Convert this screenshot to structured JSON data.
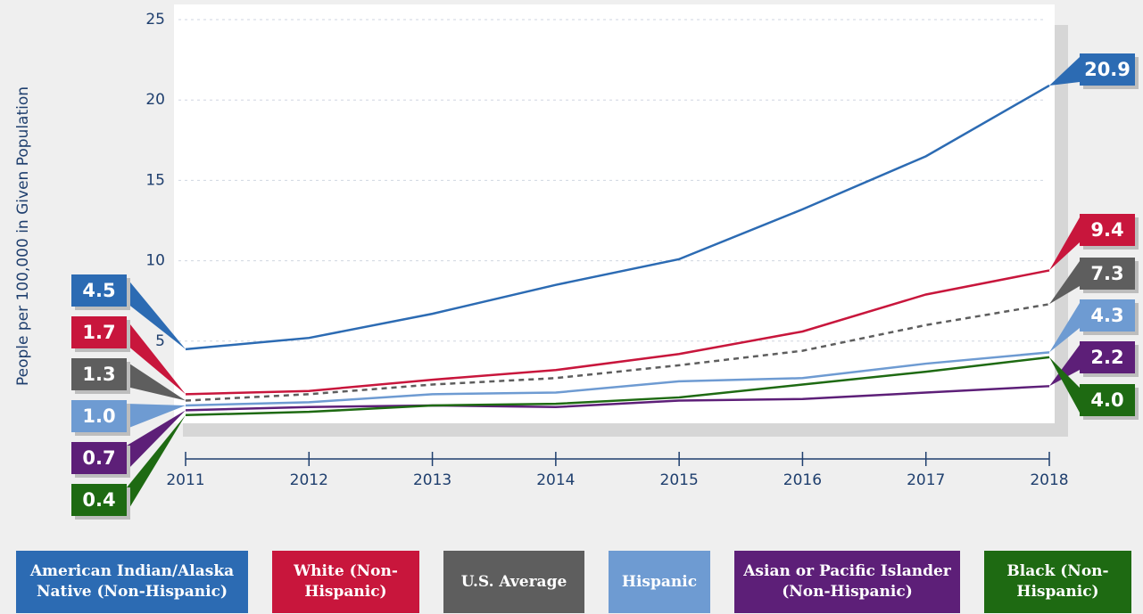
{
  "chart_data": {
    "type": "line",
    "y_label": "People per 100,000 in Given Population",
    "x": [
      2011,
      2012,
      2013,
      2014,
      2015,
      2016,
      2017,
      2018
    ],
    "xlim": [
      2011,
      2018
    ],
    "xticks": [
      2011,
      2012,
      2013,
      2014,
      2015,
      2016,
      2017,
      2018
    ],
    "ylim": [
      0,
      25
    ],
    "yticks": [
      5,
      10,
      15,
      20,
      25
    ],
    "grid": true,
    "legend": "bottom",
    "series": [
      {
        "name": "American Indian/Alaska Native (Non-Hispanic)",
        "color": "#2c6bb3",
        "dashed": false,
        "values": [
          4.5,
          5.2,
          6.7,
          8.5,
          10.1,
          13.2,
          16.5,
          20.9
        ],
        "value_labels": [
          "4.5",
          null,
          null,
          null,
          null,
          null,
          null,
          "20.9"
        ]
      },
      {
        "name": "White (Non-Hispanic)",
        "color": "#c8163c",
        "dashed": false,
        "values": [
          1.7,
          1.9,
          2.6,
          3.2,
          4.2,
          5.6,
          7.9,
          9.4
        ],
        "value_labels": [
          "1.7",
          null,
          null,
          null,
          null,
          null,
          null,
          "9.4"
        ]
      },
      {
        "name": "U.S. Average",
        "color": "#5e5e5e",
        "dashed": true,
        "values": [
          1.3,
          1.7,
          2.3,
          2.7,
          3.5,
          4.4,
          6.0,
          7.3
        ],
        "value_labels": [
          "1.3",
          null,
          null,
          null,
          null,
          null,
          null,
          "7.3"
        ]
      },
      {
        "name": "Hispanic",
        "color": "#6e9bd2",
        "dashed": false,
        "values": [
          1.0,
          1.2,
          1.7,
          1.8,
          2.5,
          2.7,
          3.6,
          4.3
        ],
        "value_labels": [
          "1.0",
          null,
          null,
          null,
          null,
          null,
          null,
          "4.3"
        ]
      },
      {
        "name": "Asian or Pacific Islander (Non-Hispanic)",
        "color": "#5d1f78",
        "dashed": false,
        "values": [
          0.7,
          0.9,
          1.0,
          0.9,
          1.3,
          1.4,
          1.8,
          2.2
        ],
        "value_labels": [
          "0.7",
          null,
          null,
          null,
          null,
          null,
          null,
          "2.2"
        ]
      },
      {
        "name": "Black (Non-Hispanic)",
        "color": "#1e6a12",
        "dashed": false,
        "values": [
          0.4,
          0.6,
          1.0,
          1.1,
          1.5,
          2.3,
          3.1,
          4.0
        ],
        "value_labels": [
          "0.4",
          null,
          null,
          null,
          null,
          null,
          null,
          "4.0"
        ]
      }
    ]
  }
}
